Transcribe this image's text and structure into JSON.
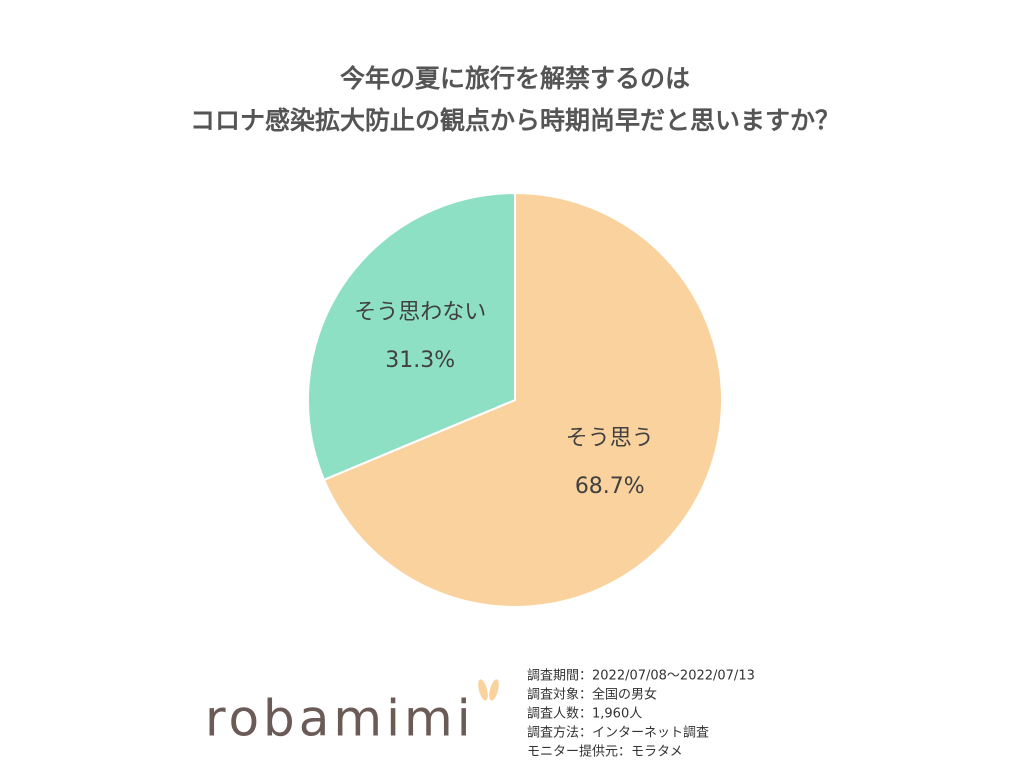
{
  "chart_data": {
    "type": "pie",
    "title": [
      "今年の夏に旅行を解禁するのは",
      "コロナ感染拡大防止の観点から時期尚早だと思いますか？"
    ],
    "categories": [
      "そう思う",
      "そう思わない"
    ],
    "values": [
      68.7,
      31.3
    ],
    "value_labels": [
      "68.7%",
      "31.3%"
    ],
    "colors": [
      "#f9d29d",
      "#8ee0c4"
    ],
    "notes": [
      "調査期間：2022/07/08～2022/07/13",
      "調査対象：全国の男女",
      "調査人数：1,960人",
      "調査方法：インターネット調査",
      "モニター提供元：モラタメ"
    ],
    "logo": "robamimi"
  }
}
